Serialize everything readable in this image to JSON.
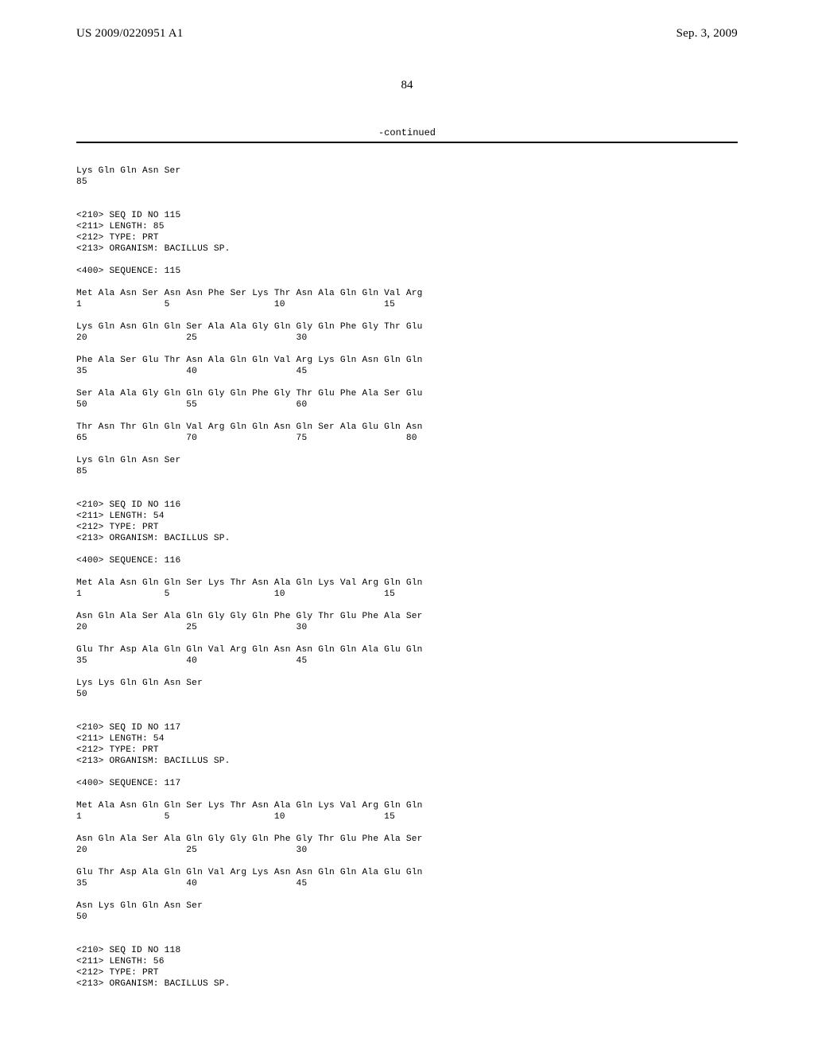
{
  "header": {
    "left": "US 2009/0220951 A1",
    "right": "Sep. 3, 2009"
  },
  "page_number": "84",
  "continued": "-continued",
  "sequences": [
    {
      "tail": "Lys Gln Gln Asn Ser\n85"
    },
    {
      "meta": "<210> SEQ ID NO 115\n<211> LENGTH: 85\n<212> TYPE: PRT\n<213> ORGANISM: BACILLUS SP.",
      "seq_header": "<400> SEQUENCE: 115",
      "lines": [
        "Met Ala Asn Ser Asn Asn Phe Ser Lys Thr Asn Ala Gln Gln Val Arg\n1               5                   10                  15",
        "Lys Gln Asn Gln Gln Ser Ala Ala Gly Gln Gly Gln Phe Gly Thr Glu\n20                  25                  30",
        "Phe Ala Ser Glu Thr Asn Ala Gln Gln Val Arg Lys Gln Asn Gln Gln\n35                  40                  45",
        "Ser Ala Ala Gly Gln Gln Gly Gln Phe Gly Thr Glu Phe Ala Ser Glu\n50                  55                  60",
        "Thr Asn Thr Gln Gln Val Arg Gln Gln Asn Gln Ser Ala Glu Gln Asn\n65                  70                  75                  80",
        "Lys Gln Gln Asn Ser\n85"
      ]
    },
    {
      "meta": "<210> SEQ ID NO 116\n<211> LENGTH: 54\n<212> TYPE: PRT\n<213> ORGANISM: BACILLUS SP.",
      "seq_header": "<400> SEQUENCE: 116",
      "lines": [
        "Met Ala Asn Gln Gln Ser Lys Thr Asn Ala Gln Lys Val Arg Gln Gln\n1               5                   10                  15",
        "Asn Gln Ala Ser Ala Gln Gly Gly Gln Phe Gly Thr Glu Phe Ala Ser\n20                  25                  30",
        "Glu Thr Asp Ala Gln Gln Val Arg Gln Asn Asn Gln Gln Ala Glu Gln\n35                  40                  45",
        "Lys Lys Gln Gln Asn Ser\n50"
      ]
    },
    {
      "meta": "<210> SEQ ID NO 117\n<211> LENGTH: 54\n<212> TYPE: PRT\n<213> ORGANISM: BACILLUS SP.",
      "seq_header": "<400> SEQUENCE: 117",
      "lines": [
        "Met Ala Asn Gln Gln Ser Lys Thr Asn Ala Gln Lys Val Arg Gln Gln\n1               5                   10                  15",
        "Asn Gln Ala Ser Ala Gln Gly Gly Gln Phe Gly Thr Glu Phe Ala Ser\n20                  25                  30",
        "Glu Thr Asp Ala Gln Gln Val Arg Lys Asn Asn Gln Gln Ala Glu Gln\n35                  40                  45",
        "Asn Lys Gln Gln Asn Ser\n50"
      ]
    },
    {
      "meta": "<210> SEQ ID NO 118\n<211> LENGTH: 56\n<212> TYPE: PRT\n<213> ORGANISM: BACILLUS SP."
    }
  ]
}
